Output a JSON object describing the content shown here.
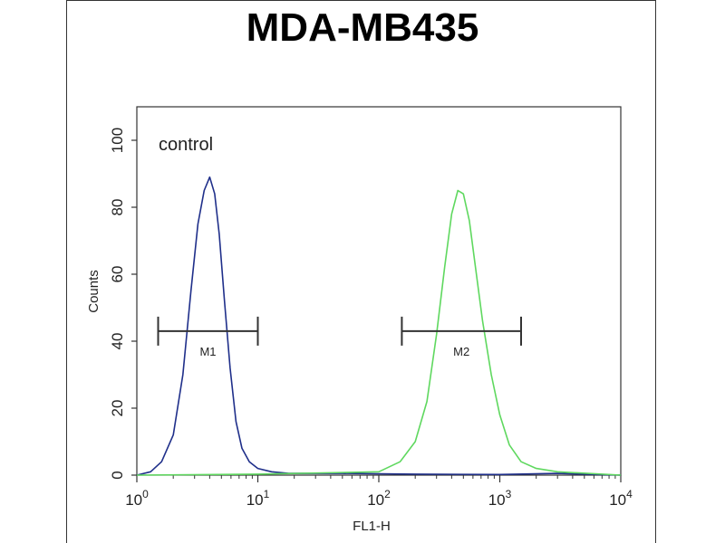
{
  "chart_data": {
    "type": "line",
    "title": "MDA-MB435",
    "xlabel": "FL1-H",
    "ylabel": "Counts",
    "x_scale": "log",
    "xlim": [
      1,
      10000
    ],
    "ylim": [
      0,
      110
    ],
    "y_ticks": [
      0,
      20,
      40,
      60,
      80,
      100
    ],
    "x_ticks": [
      {
        "base": "10",
        "exp": "0"
      },
      {
        "base": "10",
        "exp": "1"
      },
      {
        "base": "10",
        "exp": "2"
      },
      {
        "base": "10",
        "exp": "3"
      },
      {
        "base": "10",
        "exp": "4"
      }
    ],
    "annotation": "control",
    "series": [
      {
        "color": "#1f2f8a",
        "points": [
          [
            1,
            0
          ],
          [
            1.3,
            1
          ],
          [
            1.6,
            4
          ],
          [
            2.0,
            12
          ],
          [
            2.4,
            30
          ],
          [
            2.8,
            55
          ],
          [
            3.2,
            75
          ],
          [
            3.6,
            85
          ],
          [
            4.0,
            89
          ],
          [
            4.4,
            84
          ],
          [
            4.8,
            72
          ],
          [
            5.3,
            52
          ],
          [
            5.9,
            32
          ],
          [
            6.6,
            16
          ],
          [
            7.4,
            8
          ],
          [
            8.5,
            4
          ],
          [
            10,
            2
          ],
          [
            13,
            1
          ],
          [
            18,
            0.5
          ],
          [
            50,
            0.5
          ],
          [
            200,
            0.3
          ],
          [
            1000,
            0.2
          ],
          [
            3000,
            0.5
          ],
          [
            10000,
            0
          ]
        ]
      },
      {
        "color": "#5fd85f",
        "points": [
          [
            1,
            0
          ],
          [
            10,
            0.3
          ],
          [
            100,
            1
          ],
          [
            150,
            4
          ],
          [
            200,
            10
          ],
          [
            250,
            22
          ],
          [
            300,
            42
          ],
          [
            350,
            62
          ],
          [
            400,
            78
          ],
          [
            450,
            85
          ],
          [
            500,
            84
          ],
          [
            560,
            76
          ],
          [
            630,
            62
          ],
          [
            720,
            46
          ],
          [
            850,
            30
          ],
          [
            1000,
            18
          ],
          [
            1200,
            9
          ],
          [
            1500,
            4
          ],
          [
            2000,
            2
          ],
          [
            3000,
            1
          ],
          [
            10000,
            0
          ]
        ]
      }
    ],
    "markers": [
      {
        "label": "M1",
        "x_range": [
          1.5,
          10
        ],
        "y": 43
      },
      {
        "label": "M2",
        "x_range": [
          155,
          1500
        ],
        "y": 43
      }
    ]
  }
}
